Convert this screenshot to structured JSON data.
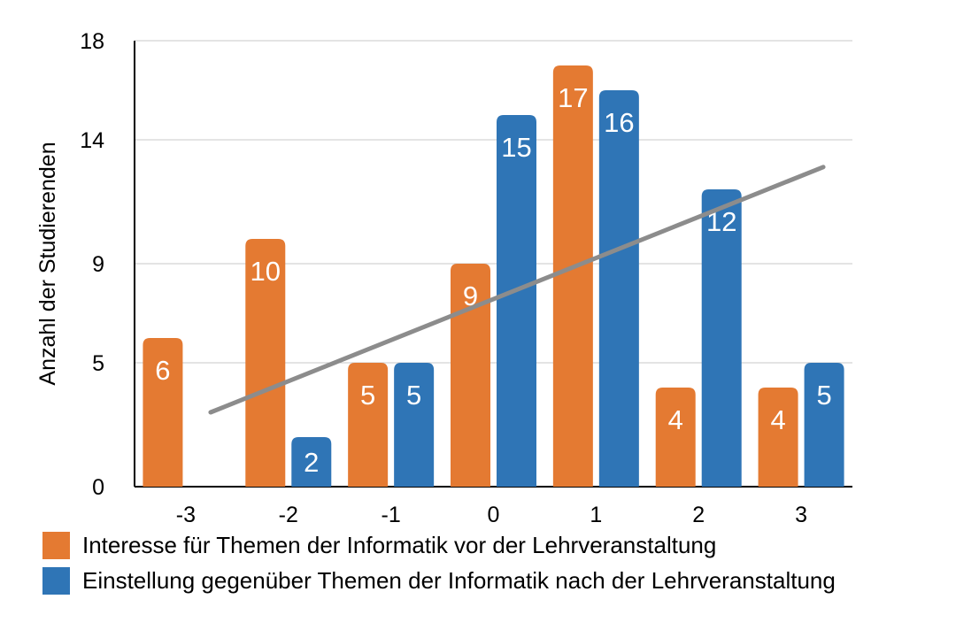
{
  "chart_data": {
    "type": "bar",
    "title": "",
    "xlabel": "",
    "ylabel": "Anzahl der Studierenden",
    "categories": [
      "-3",
      "-2",
      "-1",
      "0",
      "1",
      "2",
      "3"
    ],
    "y_ticks": [
      "0",
      "5",
      "9",
      "14",
      "18"
    ],
    "ylim": [
      0,
      18
    ],
    "grid": true,
    "legend_position": "bottom-left",
    "series": [
      {
        "name": "Interesse für Themen der Informatik vor der Lehrveranstaltung",
        "color": "#e47a32",
        "values": [
          6,
          10,
          5,
          9,
          17,
          4,
          4
        ]
      },
      {
        "name": "Einstellung gegenüber Themen der Informatik nach der Lehrveranstaltung",
        "color": "#2f75b6",
        "values": [
          null,
          2,
          5,
          15,
          16,
          12,
          5
        ]
      }
    ],
    "trendline": {
      "color": "#8c8c8c",
      "from": {
        "x": "-3",
        "y": 3.0
      },
      "to": {
        "x": "3",
        "y": 12.9
      }
    }
  }
}
